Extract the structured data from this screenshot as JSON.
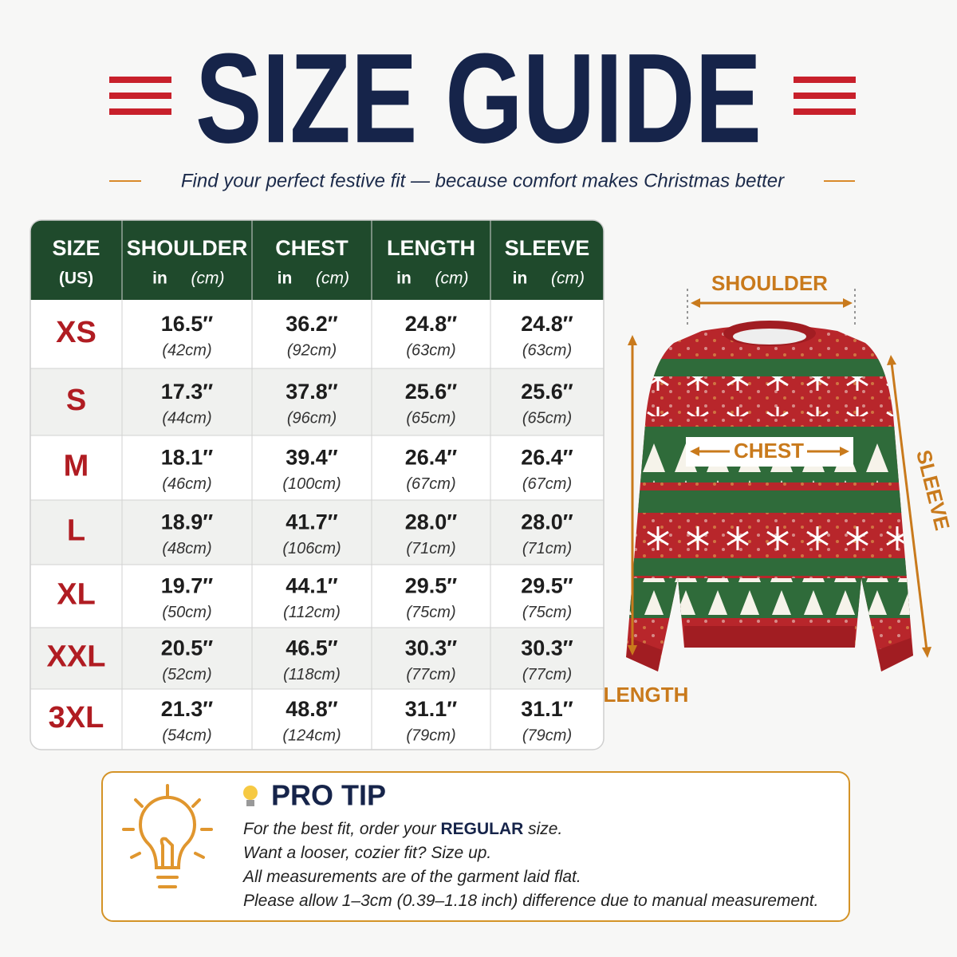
{
  "header": {
    "title": "SIZE GUIDE",
    "subtitle": "Find your perfect festive fit — because comfort makes Christmas better"
  },
  "table": {
    "columns": [
      {
        "name": "SIZE",
        "unit": "(US)"
      },
      {
        "name": "SHOULDER",
        "in": "in",
        "cm": "(cm)"
      },
      {
        "name": "CHEST",
        "in": "in",
        "cm": "(cm)"
      },
      {
        "name": "LENGTH",
        "in": "in",
        "cm": "(cm)"
      },
      {
        "name": "SLEEVE",
        "in": "in",
        "cm": "(cm)"
      }
    ],
    "rows": [
      {
        "size": "XS",
        "cells": [
          {
            "in": "16.5″",
            "cm": "(42cm)"
          },
          {
            "in": "36.2″",
            "cm": "(92cm)"
          },
          {
            "in": "24.8″",
            "cm": "(63cm)"
          },
          {
            "in": "24.8″",
            "cm": "(63cm)"
          }
        ]
      },
      {
        "size": "S",
        "cells": [
          {
            "in": "17.3″",
            "cm": "(44cm)"
          },
          {
            "in": "37.8″",
            "cm": "(96cm)"
          },
          {
            "in": "25.6″",
            "cm": "(65cm)"
          },
          {
            "in": "25.6″",
            "cm": "(65cm)"
          }
        ]
      },
      {
        "size": "M",
        "cells": [
          {
            "in": "18.1″",
            "cm": "(46cm)"
          },
          {
            "in": "39.4″",
            "cm": "(100cm)"
          },
          {
            "in": "26.4″",
            "cm": "(67cm)"
          },
          {
            "in": "26.4″",
            "cm": "(67cm)"
          }
        ]
      },
      {
        "size": "L",
        "cells": [
          {
            "in": "18.9″",
            "cm": "(48cm)"
          },
          {
            "in": "41.7″",
            "cm": "(106cm)"
          },
          {
            "in": "28.0″",
            "cm": "(71cm)"
          },
          {
            "in": "28.0″",
            "cm": "(71cm)"
          }
        ]
      },
      {
        "size": "XL",
        "cells": [
          {
            "in": "19.7″",
            "cm": "(50cm)"
          },
          {
            "in": "44.1″",
            "cm": "(112cm)"
          },
          {
            "in": "29.5″",
            "cm": "(75cm)"
          },
          {
            "in": "29.5″",
            "cm": "(75cm)"
          }
        ]
      },
      {
        "size": "XXL",
        "cells": [
          {
            "in": "20.5″",
            "cm": "(52cm)"
          },
          {
            "in": "46.5″",
            "cm": "(118cm)"
          },
          {
            "in": "30.3″",
            "cm": "(77cm)"
          },
          {
            "in": "30.3″",
            "cm": "(77cm)"
          }
        ]
      },
      {
        "size": "3XL",
        "cells": [
          {
            "in": "21.3″",
            "cm": "(54cm)"
          },
          {
            "in": "48.8″",
            "cm": "(124cm)"
          },
          {
            "in": "31.1″",
            "cm": "(79cm)"
          },
          {
            "in": "31.1″",
            "cm": "(79cm)"
          }
        ]
      }
    ]
  },
  "diagram": {
    "shoulder": "SHOULDER",
    "chest": "CHEST",
    "sleeve": "SLEEVE",
    "length": "LENGTH"
  },
  "tip": {
    "title": "PRO TIP",
    "lines": [
      [
        "For the best fit, order your ",
        "REGULAR",
        " size."
      ],
      [
        "Want a looser, cozier fit? Size up."
      ],
      [
        "All measurements are of the garment laid flat."
      ],
      [
        "Please allow 1–3cm (0.39–1.18 inch) difference due to manual measurement."
      ]
    ]
  }
}
